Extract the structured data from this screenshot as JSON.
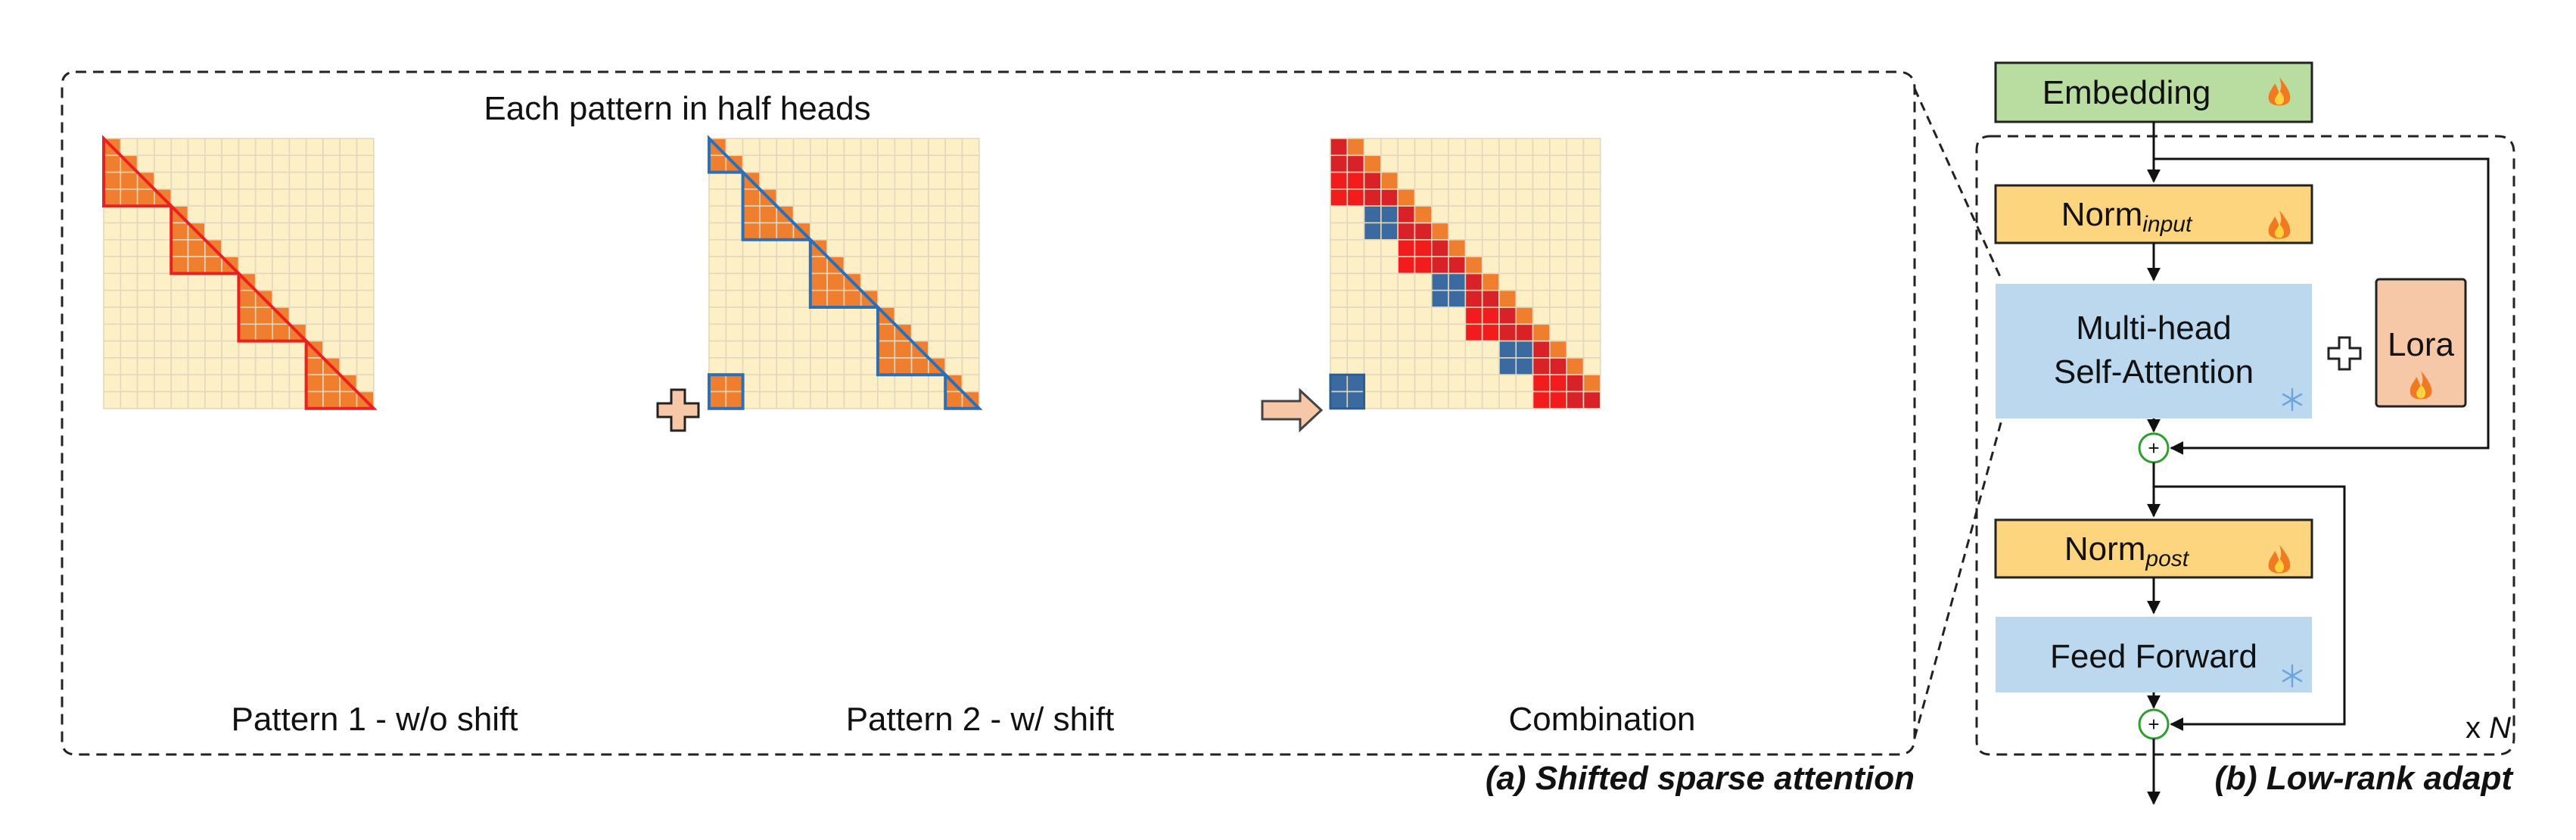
{
  "left_panel": {
    "title": "Each pattern in half heads",
    "grids": [
      {
        "id": "pattern1",
        "label": "Pattern 1 - w/o shift",
        "outline_color": "#e8231f"
      },
      {
        "id": "pattern2",
        "label": "Pattern 2 - w/ shift",
        "outline_color": "#2e6eb3"
      },
      {
        "id": "combination",
        "label": "Combination"
      }
    ],
    "plus_symbol": "+",
    "caption": "(a) Shifted sparse attention"
  },
  "right_panel": {
    "embedding": {
      "label": "Embedding",
      "color": "#b9ddA1"
    },
    "norm_input": {
      "label": "Norm",
      "sub": "input"
    },
    "attention": {
      "line1": "Multi-head",
      "line2": "Self-Attention"
    },
    "lora": {
      "label": "Lora"
    },
    "norm_post": {
      "label": "Norm",
      "sub": "post"
    },
    "feed_forward": {
      "label": "Feed Forward"
    },
    "plus_symbol": "+",
    "repeat": {
      "prefix": "x ",
      "var": "N"
    },
    "caption": "(b) Low-rank adapt"
  },
  "colors": {
    "cell_bg": "#fdefc6",
    "cell_grid": "#e2d8bd",
    "active_orange": "#ef7f2f",
    "red": "#e8231f",
    "blue": "#2e6eb3",
    "norm": "#fdd57e",
    "attn": "#bcd8ee",
    "lora": "#f7c8a8"
  }
}
